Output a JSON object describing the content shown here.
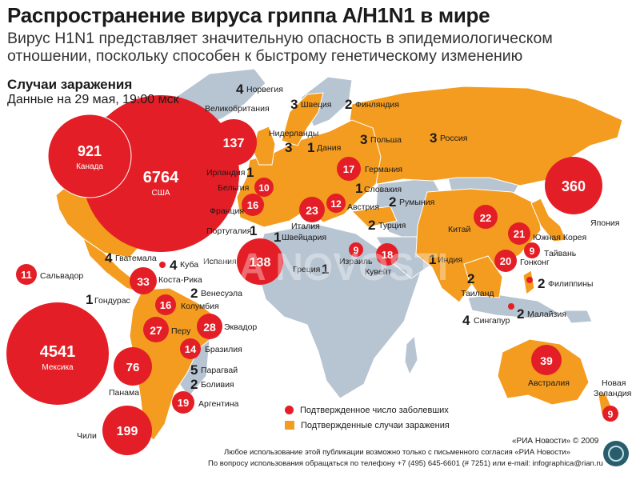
{
  "header": {
    "title": "Распространение вируса гриппа А/H1N1 в мире",
    "subtitle": "Вирус H1N1 представляет значительную опасность в эпидемиологическом отношении, поскольку способен к быстрому генетическому изменению",
    "cases_title": "Случаи заражения",
    "cases_date": "Данные на 29 мая, 19:00 мск"
  },
  "colors": {
    "confirmed_country": "#f39c1f",
    "other_land": "#b7c4d1",
    "bubble": "#e41e26",
    "background": "#ffffff"
  },
  "bubbles": [
    {
      "id": "canada",
      "count": "921",
      "name": "Канада"
    },
    {
      "id": "usa",
      "count": "6764",
      "name": "США"
    },
    {
      "id": "mexico",
      "count": "4541",
      "name": "Мексика"
    },
    {
      "id": "japan",
      "count": "360",
      "name": "Япония"
    },
    {
      "id": "uk",
      "count": "137",
      "name": "Великобритания"
    },
    {
      "id": "spain",
      "count": "138",
      "name": "Испания"
    },
    {
      "id": "chile",
      "count": "199",
      "name": "Чили"
    },
    {
      "id": "panama",
      "count": "76",
      "name": "Панама"
    },
    {
      "id": "australia",
      "count": "39",
      "name": "Австралия"
    },
    {
      "id": "costarica",
      "count": "33",
      "name": "Коста-Рика"
    },
    {
      "id": "peru",
      "count": "27",
      "name": "Перу"
    },
    {
      "id": "ecuador",
      "count": "28",
      "name": "Эквадор"
    },
    {
      "id": "italy",
      "count": "23",
      "name": "Италия"
    },
    {
      "id": "china",
      "count": "22",
      "name": "Китай"
    },
    {
      "id": "southkorea",
      "count": "21",
      "name": "Южная Корея"
    },
    {
      "id": "hongkong",
      "count": "20",
      "name": "Гонконг"
    },
    {
      "id": "argentina",
      "count": "19",
      "name": "Аргентина"
    },
    {
      "id": "israel",
      "count": "18",
      "name": "Израиль"
    },
    {
      "id": "germany",
      "count": "17",
      "name": "Германия"
    },
    {
      "id": "colombia",
      "count": "16",
      "name": "Колумбия"
    },
    {
      "id": "france",
      "count": "16",
      "name": "Франция"
    },
    {
      "id": "brazil",
      "count": "14",
      "name": "Бразилия"
    },
    {
      "id": "austria",
      "count": "12",
      "name": "Австрия"
    },
    {
      "id": "salvador",
      "count": "11",
      "name": "Сальвадор"
    },
    {
      "id": "belgium",
      "count": "10",
      "name": "Бельгия"
    },
    {
      "id": "taiwan",
      "count": "9",
      "name": "Тайвань"
    },
    {
      "id": "kuwait",
      "count": "9",
      "name": "Кувейт"
    },
    {
      "id": "newzealand",
      "count": "9",
      "name": "Новая Зеландия"
    }
  ],
  "small_labels": [
    {
      "id": "norway",
      "count": "4",
      "name": "Норвегия"
    },
    {
      "id": "sweden",
      "count": "3",
      "name": "Швеция"
    },
    {
      "id": "finland",
      "count": "2",
      "name": "Финляндия"
    },
    {
      "id": "netherlands",
      "count": "3",
      "name": "Нидерланды"
    },
    {
      "id": "denmark",
      "count": "1",
      "name": "Дания"
    },
    {
      "id": "poland",
      "count": "3",
      "name": "Польша"
    },
    {
      "id": "russia",
      "count": "3",
      "name": "Россия"
    },
    {
      "id": "ireland",
      "count": "1",
      "name": "Ирландия"
    },
    {
      "id": "slovakia",
      "count": "1",
      "name": "Словакия"
    },
    {
      "id": "romania",
      "count": "2",
      "name": "Румыния"
    },
    {
      "id": "turkey",
      "count": "2",
      "name": "Турция"
    },
    {
      "id": "portugal",
      "count": "1",
      "name": "Португалия"
    },
    {
      "id": "switzerland",
      "count": "1",
      "name": "Швейцария"
    },
    {
      "id": "greece",
      "count": "1",
      "name": "Греция"
    },
    {
      "id": "india",
      "count": "1",
      "name": "Индия"
    },
    {
      "id": "guatemala",
      "count": "4",
      "name": "Гватемала"
    },
    {
      "id": "cuba",
      "count": "4",
      "name": "Куба"
    },
    {
      "id": "venezuela",
      "count": "2",
      "name": "Венесуэла"
    },
    {
      "id": "honduras",
      "count": "1",
      "name": "Гондурас"
    },
    {
      "id": "paraguay",
      "count": "5",
      "name": "Парагвай"
    },
    {
      "id": "bolivia",
      "count": "2",
      "name": "Боливия"
    },
    {
      "id": "thailand",
      "count": "2",
      "name": "Таиланд"
    },
    {
      "id": "singapore",
      "count": "4",
      "name": "Сингапур"
    },
    {
      "id": "malaysia",
      "count": "2",
      "name": "Малайзия"
    },
    {
      "id": "philippines",
      "count": "2",
      "name": "Филиппины"
    }
  ],
  "legend": {
    "dot_label": "Подтвержденное число заболевших",
    "area_label": "Подтвержденные случаи заражения"
  },
  "footer": {
    "credit": "«РИА Новости» © 2009",
    "usage": "Любое использование этой публикации возможно только с письменного согласия «РИА Новости»",
    "contact": "По вопросу использования обращаться по телефону +7 (495) 645-6601 (# 7251) или e-mail: infographica@rian.ru"
  }
}
